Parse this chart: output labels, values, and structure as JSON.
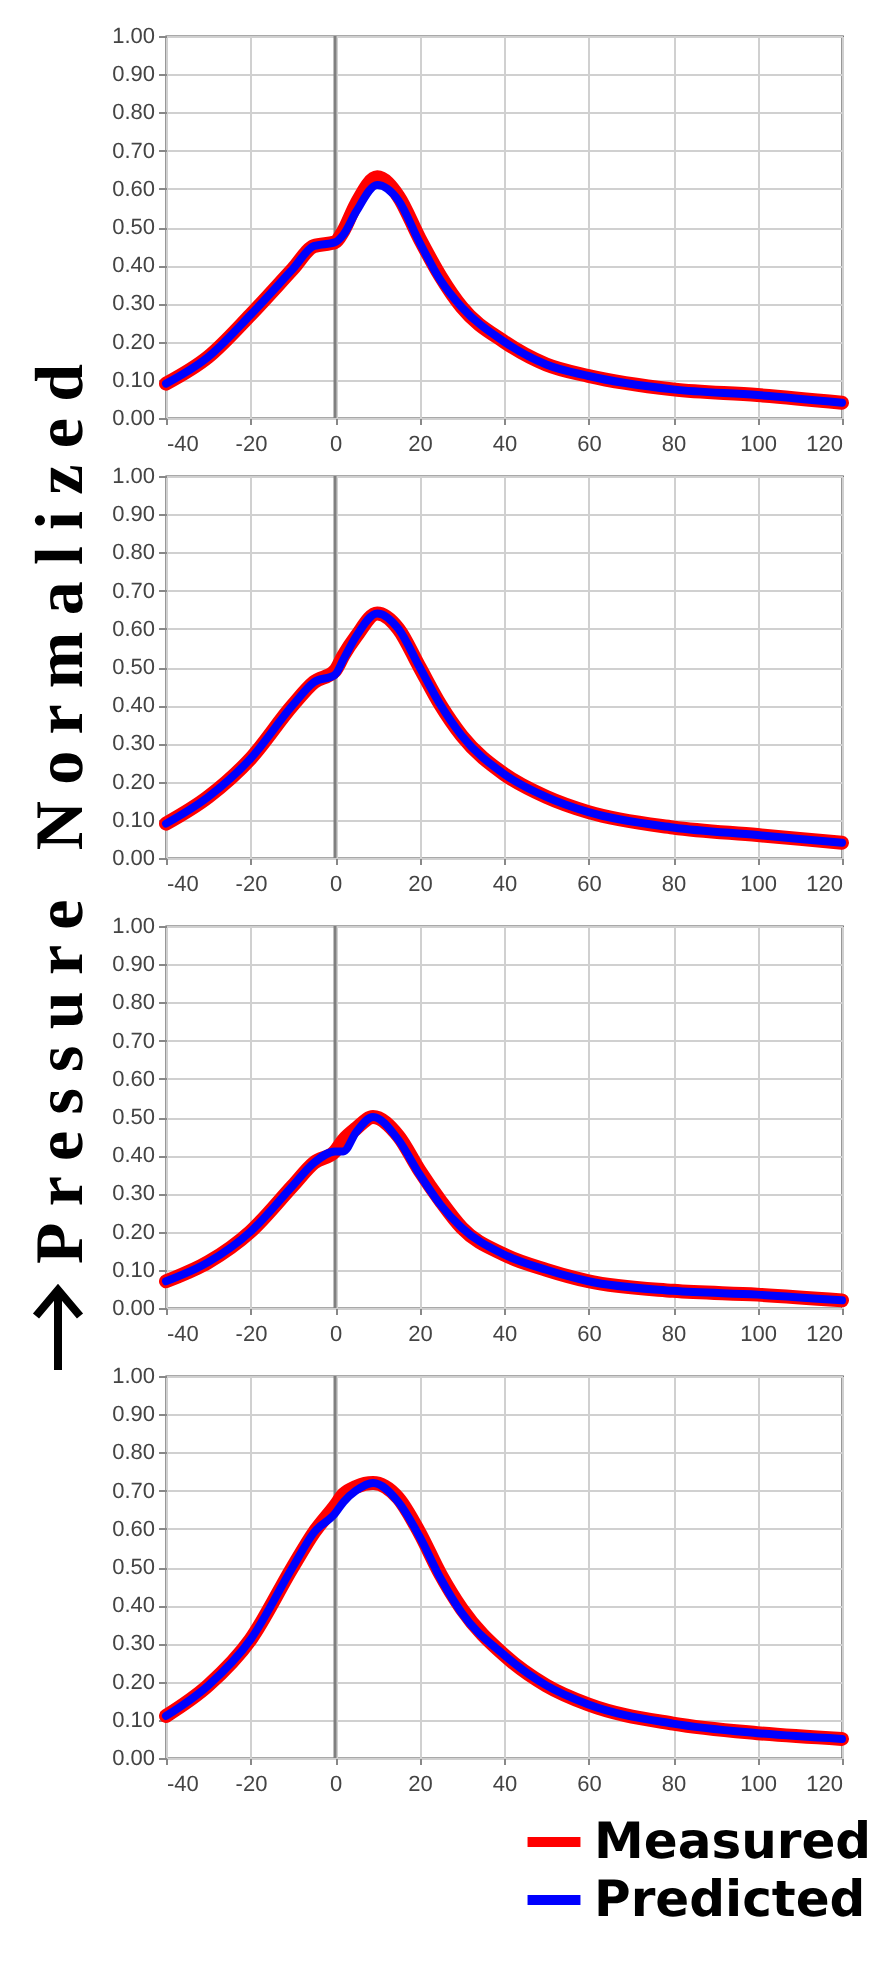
{
  "chart_data": [
    {
      "type": "line",
      "ylabel": "Pressure Normalized",
      "xlim": [
        -40,
        120
      ],
      "ylim": [
        0,
        1
      ],
      "xticks": [
        -40,
        -20,
        0,
        20,
        40,
        60,
        80,
        100,
        120
      ],
      "yticks": [
        {
          "value": 0,
          "label": "0.00"
        },
        {
          "value": 0.1,
          "label": "0.10"
        },
        {
          "value": 0.2,
          "label": "0.20"
        },
        {
          "value": 0.3,
          "label": "0.30"
        },
        {
          "value": 0.4,
          "label": "0.40"
        },
        {
          "value": 0.5,
          "label": "0.50"
        },
        {
          "value": 0.6,
          "label": "0.60"
        },
        {
          "value": 0.7,
          "label": "0.70"
        },
        {
          "value": 0.8,
          "label": "0.80"
        },
        {
          "value": 0.9,
          "label": "0.90"
        },
        {
          "value": 1,
          "label": "1.00"
        }
      ],
      "grid": true,
      "ref_lines": [
        {
          "axis": "x",
          "value": 0,
          "color": "#808080"
        }
      ],
      "x": [
        -40,
        -30,
        -20,
        -10,
        -5,
        0,
        2,
        5,
        10,
        15,
        20,
        25,
        30,
        40,
        50,
        60,
        80,
        100,
        120
      ],
      "series": [
        {
          "color": "#ff0000",
          "values": [
            0.09,
            0.16,
            0.27,
            0.39,
            0.45,
            0.46,
            0.49,
            0.56,
            0.63,
            0.58,
            0.47,
            0.37,
            0.29,
            0.2,
            0.14,
            0.11,
            0.075,
            0.06,
            0.04
          ]
        },
        {
          "color": "#0000ff",
          "values": [
            0.09,
            0.16,
            0.27,
            0.39,
            0.45,
            0.46,
            0.48,
            0.54,
            0.61,
            0.57,
            0.46,
            0.36,
            0.29,
            0.2,
            0.14,
            0.11,
            0.075,
            0.06,
            0.04
          ]
        }
      ]
    },
    {
      "type": "line",
      "xlim": [
        -40,
        120
      ],
      "ylim": [
        0,
        1
      ],
      "xticks": [
        -40,
        -20,
        0,
        20,
        40,
        60,
        80,
        100,
        120
      ],
      "yticks": [
        {
          "value": 0,
          "label": "0.00"
        },
        {
          "value": 0.1,
          "label": "0.10"
        },
        {
          "value": 0.2,
          "label": "0.20"
        },
        {
          "value": 0.3,
          "label": "0.30"
        },
        {
          "value": 0.4,
          "label": "0.40"
        },
        {
          "value": 0.5,
          "label": "0.50"
        },
        {
          "value": 0.6,
          "label": "0.60"
        },
        {
          "value": 0.7,
          "label": "0.70"
        },
        {
          "value": 0.8,
          "label": "0.80"
        },
        {
          "value": 0.9,
          "label": "0.90"
        },
        {
          "value": 1,
          "label": "1.00"
        }
      ],
      "grid": true,
      "ref_lines": [
        {
          "axis": "x",
          "value": 0,
          "color": "#808080"
        }
      ],
      "x": [
        -40,
        -30,
        -20,
        -10,
        -5,
        0,
        2,
        5,
        10,
        15,
        20,
        25,
        30,
        40,
        50,
        60,
        80,
        100,
        120
      ],
      "series": [
        {
          "color": "#ff0000",
          "values": [
            0.09,
            0.16,
            0.26,
            0.4,
            0.46,
            0.49,
            0.53,
            0.58,
            0.64,
            0.6,
            0.5,
            0.4,
            0.32,
            0.22,
            0.16,
            0.12,
            0.08,
            0.06,
            0.04
          ]
        },
        {
          "color": "#0000ff",
          "values": [
            0.09,
            0.16,
            0.26,
            0.4,
            0.46,
            0.48,
            0.52,
            0.58,
            0.64,
            0.6,
            0.5,
            0.4,
            0.32,
            0.22,
            0.16,
            0.12,
            0.08,
            0.06,
            0.04
          ]
        }
      ]
    },
    {
      "type": "line",
      "xlim": [
        -40,
        120
      ],
      "ylim": [
        0,
        1
      ],
      "xticks": [
        -40,
        -20,
        0,
        20,
        40,
        60,
        80,
        100,
        120
      ],
      "yticks": [
        {
          "value": 0,
          "label": "0.00"
        },
        {
          "value": 0.1,
          "label": "0.10"
        },
        {
          "value": 0.2,
          "label": "0.20"
        },
        {
          "value": 0.3,
          "label": "0.30"
        },
        {
          "value": 0.4,
          "label": "0.40"
        },
        {
          "value": 0.5,
          "label": "0.50"
        },
        {
          "value": 0.6,
          "label": "0.60"
        },
        {
          "value": 0.7,
          "label": "0.70"
        },
        {
          "value": 0.8,
          "label": "0.80"
        },
        {
          "value": 0.9,
          "label": "0.90"
        },
        {
          "value": 1,
          "label": "1.00"
        }
      ],
      "grid": true,
      "ref_lines": [
        {
          "axis": "x",
          "value": 0,
          "color": "#808080"
        }
      ],
      "x": [
        -40,
        -30,
        -20,
        -10,
        -5,
        0,
        2,
        5,
        9,
        15,
        20,
        25,
        30,
        40,
        50,
        60,
        80,
        100,
        120
      ],
      "series": [
        {
          "color": "#ff0000",
          "values": [
            0.07,
            0.12,
            0.2,
            0.32,
            0.38,
            0.41,
            0.44,
            0.47,
            0.5,
            0.45,
            0.36,
            0.28,
            0.21,
            0.14,
            0.1,
            0.07,
            0.045,
            0.035,
            0.02
          ]
        },
        {
          "color": "#0000ff",
          "values": [
            0.07,
            0.12,
            0.2,
            0.32,
            0.38,
            0.41,
            0.41,
            0.46,
            0.5,
            0.44,
            0.35,
            0.27,
            0.21,
            0.14,
            0.1,
            0.07,
            0.045,
            0.035,
            0.02
          ]
        }
      ]
    },
    {
      "type": "line",
      "xlim": [
        -40,
        120
      ],
      "ylim": [
        0,
        1
      ],
      "legend": "bottom right",
      "xticks": [
        -40,
        -20,
        0,
        20,
        40,
        60,
        80,
        100,
        120
      ],
      "yticks": [
        {
          "value": 0,
          "label": "0.00"
        },
        {
          "value": 0.1,
          "label": "0.10"
        },
        {
          "value": 0.2,
          "label": "0.20"
        },
        {
          "value": 0.3,
          "label": "0.30"
        },
        {
          "value": 0.4,
          "label": "0.40"
        },
        {
          "value": 0.5,
          "label": "0.50"
        },
        {
          "value": 0.6,
          "label": "0.60"
        },
        {
          "value": 0.7,
          "label": "0.70"
        },
        {
          "value": 0.8,
          "label": "0.80"
        },
        {
          "value": 0.9,
          "label": "0.90"
        },
        {
          "value": 1,
          "label": "1.00"
        }
      ],
      "grid": true,
      "ref_lines": [
        {
          "axis": "x",
          "value": 0,
          "color": "#808080"
        }
      ],
      "x": [
        -40,
        -30,
        -20,
        -10,
        -5,
        0,
        2,
        5,
        9,
        15,
        20,
        25,
        30,
        40,
        50,
        60,
        80,
        100,
        120
      ],
      "series": [
        {
          "name": "Measured",
          "color": "#ff0000",
          "values": [
            0.11,
            0.19,
            0.31,
            0.5,
            0.59,
            0.66,
            0.69,
            0.71,
            0.72,
            0.68,
            0.59,
            0.48,
            0.39,
            0.27,
            0.19,
            0.14,
            0.09,
            0.065,
            0.05
          ]
        },
        {
          "name": "Predicted",
          "color": "#0000ff",
          "values": [
            0.11,
            0.19,
            0.31,
            0.5,
            0.59,
            0.64,
            0.67,
            0.7,
            0.72,
            0.67,
            0.58,
            0.47,
            0.38,
            0.27,
            0.19,
            0.14,
            0.09,
            0.065,
            0.05
          ]
        }
      ]
    }
  ]
}
